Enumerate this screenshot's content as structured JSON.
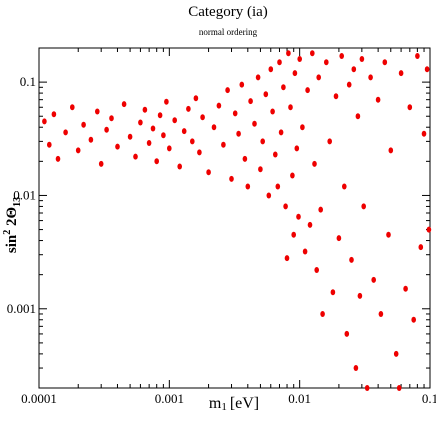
{
  "chart_data": {
    "type": "scatter",
    "title": "Category (ia)",
    "subtitle": "normal ordering",
    "xlabel": {
      "main": "m",
      "sub": "1",
      "unit": "[eV]"
    },
    "ylabel": {
      "main": "sin",
      "sup": "2",
      "mid": " 2Θ",
      "sub": "13"
    },
    "x_scale": "log",
    "y_scale": "log",
    "xlim": [
      0.0001,
      0.1
    ],
    "ylim": [
      0.0002,
      0.2
    ],
    "x_ticks": [
      0.0001,
      0.001,
      0.01,
      0.1
    ],
    "x_tick_labels": [
      "0.0001",
      "0.001",
      "0.01",
      "0.1"
    ],
    "y_ticks": [
      0.001,
      0.01,
      0.1
    ],
    "y_tick_labels": [
      "0.001",
      "0.01",
      "0.1"
    ],
    "grid": false,
    "marker_color": "#ee0000",
    "series": [
      {
        "points": [
          [
            0.00011,
            0.045
          ],
          [
            0.00012,
            0.028
          ],
          [
            0.00013,
            0.052
          ],
          [
            0.00014,
            0.021
          ],
          [
            0.00016,
            0.036
          ],
          [
            0.00018,
            0.06
          ],
          [
            0.0002,
            0.025
          ],
          [
            0.00022,
            0.042
          ],
          [
            0.00025,
            0.031
          ],
          [
            0.00028,
            0.055
          ],
          [
            0.0003,
            0.019
          ],
          [
            0.00033,
            0.038
          ],
          [
            0.00036,
            0.048
          ],
          [
            0.0004,
            0.027
          ],
          [
            0.00045,
            0.064
          ],
          [
            0.0005,
            0.033
          ],
          [
            0.00055,
            0.022
          ],
          [
            0.0006,
            0.044
          ],
          [
            0.00065,
            0.057
          ],
          [
            0.0007,
            0.029
          ],
          [
            0.00075,
            0.039
          ],
          [
            0.0008,
            0.02
          ],
          [
            0.00085,
            0.051
          ],
          [
            0.0009,
            0.034
          ],
          [
            0.00095,
            0.067
          ],
          [
            0.001,
            0.026
          ],
          [
            0.0011,
            0.046
          ],
          [
            0.0012,
            0.018
          ],
          [
            0.0013,
            0.037
          ],
          [
            0.0014,
            0.058
          ],
          [
            0.0015,
            0.03
          ],
          [
            0.0016,
            0.072
          ],
          [
            0.0017,
            0.024
          ],
          [
            0.0018,
            0.049
          ],
          [
            0.002,
            0.016
          ],
          [
            0.0022,
            0.04
          ],
          [
            0.0024,
            0.062
          ],
          [
            0.0026,
            0.028
          ],
          [
            0.0028,
            0.085
          ],
          [
            0.003,
            0.014
          ],
          [
            0.0032,
            0.053
          ],
          [
            0.0034,
            0.035
          ],
          [
            0.0036,
            0.095
          ],
          [
            0.0038,
            0.021
          ],
          [
            0.004,
            0.012
          ],
          [
            0.0042,
            0.068
          ],
          [
            0.0045,
            0.043
          ],
          [
            0.0048,
            0.11
          ],
          [
            0.005,
            0.017
          ],
          [
            0.0052,
            0.03
          ],
          [
            0.0055,
            0.078
          ],
          [
            0.0058,
            0.01
          ],
          [
            0.006,
            0.13
          ],
          [
            0.0062,
            0.055
          ],
          [
            0.0065,
            0.023
          ],
          [
            0.0068,
            0.012
          ],
          [
            0.007,
            0.15
          ],
          [
            0.0072,
            0.036
          ],
          [
            0.0075,
            0.09
          ],
          [
            0.0078,
            0.008
          ],
          [
            0.008,
            0.0028
          ],
          [
            0.0082,
            0.18
          ],
          [
            0.0085,
            0.06
          ],
          [
            0.0088,
            0.015
          ],
          [
            0.009,
            0.0045
          ],
          [
            0.0092,
            0.12
          ],
          [
            0.0095,
            0.026
          ],
          [
            0.0098,
            0.0065
          ],
          [
            0.01,
            0.16
          ],
          [
            0.0105,
            0.04
          ],
          [
            0.011,
            0.0032
          ],
          [
            0.0115,
            0.085
          ],
          [
            0.012,
            0.0055
          ],
          [
            0.0125,
            0.18
          ],
          [
            0.013,
            0.019
          ],
          [
            0.0135,
            0.0022
          ],
          [
            0.014,
            0.11
          ],
          [
            0.0145,
            0.0075
          ],
          [
            0.015,
            0.0009
          ],
          [
            0.016,
            0.15
          ],
          [
            0.017,
            0.03
          ],
          [
            0.018,
            0.0014
          ],
          [
            0.019,
            0.075
          ],
          [
            0.02,
            0.0042
          ],
          [
            0.021,
            0.17
          ],
          [
            0.022,
            0.012
          ],
          [
            0.023,
            0.0006
          ],
          [
            0.024,
            0.095
          ],
          [
            0.025,
            0.0027
          ],
          [
            0.026,
            0.13
          ],
          [
            0.027,
            0.0003
          ],
          [
            0.028,
            0.05
          ],
          [
            0.029,
            0.0013
          ],
          [
            0.03,
            0.16
          ],
          [
            0.031,
            0.008
          ],
          [
            0.033,
            0.0002
          ],
          [
            0.035,
            0.11
          ],
          [
            0.037,
            0.0018
          ],
          [
            0.04,
            0.07
          ],
          [
            0.042,
            0.0009
          ],
          [
            0.045,
            0.15
          ],
          [
            0.048,
            0.0045
          ],
          [
            0.05,
            0.025
          ],
          [
            0.055,
            0.0004
          ],
          [
            0.058,
            0.0002
          ],
          [
            0.06,
            0.12
          ],
          [
            0.065,
            0.0015
          ],
          [
            0.07,
            0.06
          ],
          [
            0.075,
            0.0008
          ],
          [
            0.08,
            0.17
          ],
          [
            0.085,
            0.0035
          ],
          [
            0.09,
            0.035
          ],
          [
            0.095,
            0.13
          ],
          [
            0.098,
            0.005
          ]
        ]
      }
    ]
  }
}
